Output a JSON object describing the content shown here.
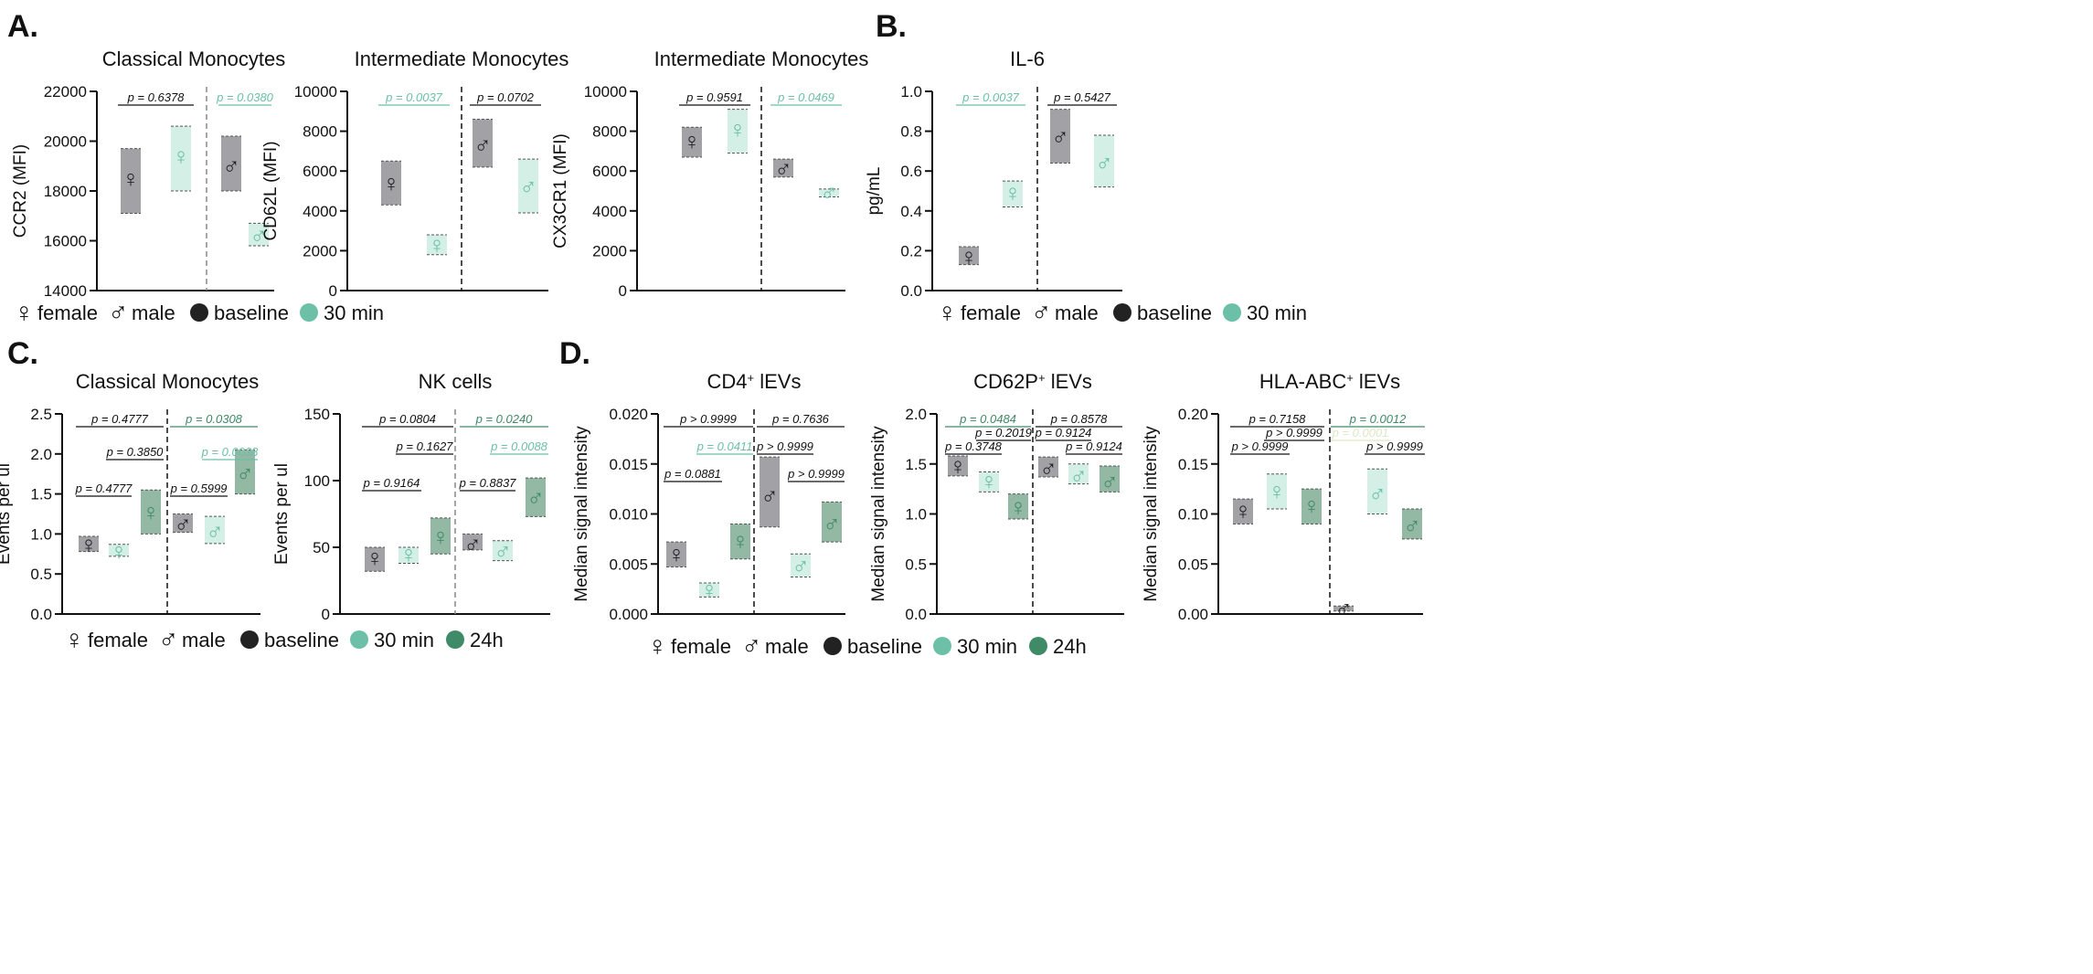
{
  "colors": {
    "baseline_box": "#a2a2a6",
    "baseline_sym": "#222222",
    "min30_box": "#d3efe6",
    "min30_sym": "#6cc0a8",
    "h24_box": "#93b8a3",
    "h24_sym": "#3f8a67",
    "p_black": "#111111",
    "p_teal": "#6cc0a8",
    "p_green": "#3f8a67",
    "p_pale": "#dde8c6"
  },
  "panel_labels": [
    "A.",
    "B.",
    "C.",
    "D."
  ],
  "legends": {
    "female": "female",
    "male": "male",
    "baseline": "baseline",
    "min30": "30 min",
    "h24": "24h",
    "female_symbol": "♀",
    "male_symbol": "♂"
  },
  "chart_data": [
    {
      "type": "box",
      "title": "Classical Monocytes",
      "title_sup": "",
      "title_rest": "",
      "ylabel": "CCR2 (MFI)",
      "ylim": [
        14000,
        22000
      ],
      "ticks": [
        14000,
        16000,
        18000,
        20000,
        22000
      ],
      "tick_labels": [
        "14000",
        "16000",
        "18000",
        "20000",
        "22000"
      ],
      "columns": [
        {
          "sex": "female",
          "time": "baseline",
          "lo": 17100,
          "hi": 19700,
          "mean": 18500
        },
        {
          "sex": "female",
          "time": "30 min",
          "lo": 18000,
          "hi": 20600,
          "mean": 19400
        },
        {
          "sex": "male",
          "time": "baseline",
          "lo": 18000,
          "hi": 20200,
          "mean": 19000
        },
        {
          "sex": "male",
          "time": "30 min",
          "lo": 15800,
          "hi": 16700,
          "mean": 16200
        }
      ],
      "comparisons": [
        {
          "from": 0,
          "to": 1,
          "level": 0,
          "label": "p = 0.6378",
          "color": "black"
        },
        {
          "from": 2,
          "to": 3,
          "level": 0,
          "label": "p = 0.0380",
          "color": "teal"
        }
      ]
    },
    {
      "type": "box",
      "title": "Intermediate Monocytes",
      "title_sup": "",
      "title_rest": "",
      "ylabel": "CD62L (MFI)",
      "ylim": [
        0,
        10000
      ],
      "ticks": [
        0,
        2000,
        4000,
        6000,
        8000,
        10000
      ],
      "tick_labels": [
        "0",
        "2000",
        "4000",
        "6000",
        "8000",
        "10000"
      ],
      "columns": [
        {
          "sex": "female",
          "time": "baseline",
          "lo": 4300,
          "hi": 6500,
          "mean": 5400
        },
        {
          "sex": "female",
          "time": "30 min",
          "lo": 1800,
          "hi": 2800,
          "mean": 2300
        },
        {
          "sex": "male",
          "time": "baseline",
          "lo": 6200,
          "hi": 8600,
          "mean": 7300
        },
        {
          "sex": "male",
          "time": "30 min",
          "lo": 3900,
          "hi": 6600,
          "mean": 5200
        }
      ],
      "comparisons": [
        {
          "from": 0,
          "to": 1,
          "level": 0,
          "label": "p = 0.0037",
          "color": "teal"
        },
        {
          "from": 2,
          "to": 3,
          "level": 0,
          "label": "p = 0.0702",
          "color": "black"
        }
      ]
    },
    {
      "type": "box",
      "title": "Intermediate Monocytes",
      "title_sup": "",
      "title_rest": "",
      "ylabel": "CX3CR1 (MFI)",
      "ylim": [
        0,
        10000
      ],
      "ticks": [
        0,
        2000,
        4000,
        6000,
        8000,
        10000
      ],
      "tick_labels": [
        "0",
        "2000",
        "4000",
        "6000",
        "8000",
        "10000"
      ],
      "columns": [
        {
          "sex": "female",
          "time": "baseline",
          "lo": 6700,
          "hi": 8200,
          "mean": 7500
        },
        {
          "sex": "female",
          "time": "30 min",
          "lo": 6900,
          "hi": 9100,
          "mean": 8100
        },
        {
          "sex": "male",
          "time": "baseline",
          "lo": 5700,
          "hi": 6600,
          "mean": 6100
        },
        {
          "sex": "male",
          "time": "30 min",
          "lo": 4700,
          "hi": 5100,
          "mean": 4900
        }
      ],
      "comparisons": [
        {
          "from": 0,
          "to": 1,
          "level": 0,
          "label": "p = 0.9591",
          "color": "black"
        },
        {
          "from": 2,
          "to": 3,
          "level": 0,
          "label": "p = 0.0469",
          "color": "teal"
        }
      ]
    },
    {
      "type": "box",
      "title": "IL-6",
      "title_sup": "",
      "title_rest": "",
      "ylabel": "pg/mL",
      "ylim": [
        0,
        1.0
      ],
      "ticks": [
        0,
        0.2,
        0.4,
        0.6,
        0.8,
        1.0
      ],
      "tick_labels": [
        "0.0",
        "0.2",
        "0.4",
        "0.6",
        "0.8",
        "1.0"
      ],
      "columns": [
        {
          "sex": "female",
          "time": "baseline",
          "lo": 0.13,
          "hi": 0.22,
          "mean": 0.17
        },
        {
          "sex": "female",
          "time": "30 min",
          "lo": 0.42,
          "hi": 0.55,
          "mean": 0.49
        },
        {
          "sex": "male",
          "time": "baseline",
          "lo": 0.64,
          "hi": 0.91,
          "mean": 0.77
        },
        {
          "sex": "male",
          "time": "30 min",
          "lo": 0.52,
          "hi": 0.78,
          "mean": 0.64
        }
      ],
      "comparisons": [
        {
          "from": 0,
          "to": 1,
          "level": 0,
          "label": "p = 0.0037",
          "color": "teal"
        },
        {
          "from": 2,
          "to": 3,
          "level": 0,
          "label": "p = 0.5427",
          "color": "black"
        }
      ]
    },
    {
      "type": "box",
      "title": "Classical Monocytes",
      "title_sup": "",
      "title_rest": "",
      "ylabel": "Events per ul",
      "ylim": [
        0,
        2.5
      ],
      "ticks": [
        0,
        0.5,
        1,
        1.5,
        2,
        2.5
      ],
      "tick_labels": [
        "0.0",
        "0.5",
        "1.0",
        "1.5",
        "2.0",
        "2.5"
      ],
      "columns": [
        {
          "sex": "female",
          "time": "baseline",
          "lo": 0.78,
          "hi": 0.97,
          "mean": 0.87
        },
        {
          "sex": "female",
          "time": "30 min",
          "lo": 0.72,
          "hi": 0.87,
          "mean": 0.78
        },
        {
          "sex": "female",
          "time": "24h",
          "lo": 1.0,
          "hi": 1.55,
          "mean": 1.27
        },
        {
          "sex": "male",
          "time": "baseline",
          "lo": 1.02,
          "hi": 1.25,
          "mean": 1.12
        },
        {
          "sex": "male",
          "time": "30 min",
          "lo": 0.88,
          "hi": 1.22,
          "mean": 1.03
        },
        {
          "sex": "male",
          "time": "24h",
          "lo": 1.5,
          "hi": 2.05,
          "mean": 1.75
        }
      ],
      "comparisons": [
        {
          "from": 0,
          "to": 2,
          "level": 0,
          "label": "p = 0.4777",
          "color": "black"
        },
        {
          "from": 1,
          "to": 2,
          "level": 1,
          "label": "p = 0.3850",
          "color": "black"
        },
        {
          "from": 0,
          "to": 1,
          "level": 2,
          "label": "p = 0.4777",
          "color": "black"
        },
        {
          "from": 3,
          "to": 5,
          "level": 0,
          "label": "p = 0.0308",
          "color": "green"
        },
        {
          "from": 4,
          "to": 5,
          "level": 1,
          "label": "p = 0.0038",
          "color": "teal"
        },
        {
          "from": 3,
          "to": 4,
          "level": 2,
          "label": "p = 0.5999",
          "color": "black"
        }
      ]
    },
    {
      "type": "box",
      "title": "NK cells",
      "title_sup": "",
      "title_rest": "",
      "ylabel": "Events per ul",
      "ylim": [
        0,
        150
      ],
      "ticks": [
        0,
        50,
        100,
        150
      ],
      "tick_labels": [
        "0",
        "50",
        "100",
        "150"
      ],
      "columns": [
        {
          "sex": "female",
          "time": "baseline",
          "lo": 32,
          "hi": 50,
          "mean": 42
        },
        {
          "sex": "female",
          "time": "30 min",
          "lo": 38,
          "hi": 50,
          "mean": 45
        },
        {
          "sex": "female",
          "time": "24h",
          "lo": 45,
          "hi": 72,
          "mean": 58
        },
        {
          "sex": "male",
          "time": "baseline",
          "lo": 48,
          "hi": 60,
          "mean": 52
        },
        {
          "sex": "male",
          "time": "30 min",
          "lo": 40,
          "hi": 55,
          "mean": 47
        },
        {
          "sex": "male",
          "time": "24h",
          "lo": 73,
          "hi": 102,
          "mean": 87
        }
      ],
      "comparisons": [
        {
          "from": 0,
          "to": 2,
          "level": 0,
          "label": "p = 0.0804",
          "color": "black"
        },
        {
          "from": 1,
          "to": 2,
          "level": 1,
          "label": "p = 0.1627",
          "color": "black"
        },
        {
          "from": 0,
          "to": 1,
          "level": 2,
          "label": "p = 0.9164",
          "color": "black"
        },
        {
          "from": 3,
          "to": 5,
          "level": 0,
          "label": "p = 0.0240",
          "color": "green"
        },
        {
          "from": 4,
          "to": 5,
          "level": 1,
          "label": "p = 0.0088",
          "color": "teal"
        },
        {
          "from": 3,
          "to": 4,
          "level": 2,
          "label": "p = 0.8837",
          "color": "black"
        }
      ]
    },
    {
      "type": "box",
      "title": "CD4",
      "title_sup": "+",
      "title_rest": " lEVs",
      "ylabel": "Median signal intensity",
      "ylim": [
        0,
        0.02
      ],
      "ticks": [
        0,
        0.005,
        0.01,
        0.015,
        0.02
      ],
      "tick_labels": [
        "0.000",
        "0.005",
        "0.010",
        "0.015",
        "0.020"
      ],
      "columns": [
        {
          "sex": "female",
          "time": "baseline",
          "lo": 0.0047,
          "hi": 0.0072,
          "mean": 0.006
        },
        {
          "sex": "female",
          "time": "30 min",
          "lo": 0.0017,
          "hi": 0.0031,
          "mean": 0.0024
        },
        {
          "sex": "female",
          "time": "24h",
          "lo": 0.0055,
          "hi": 0.009,
          "mean": 0.0073
        },
        {
          "sex": "male",
          "time": "baseline",
          "lo": 0.0087,
          "hi": 0.0157,
          "mean": 0.0118
        },
        {
          "sex": "male",
          "time": "30 min",
          "lo": 0.0037,
          "hi": 0.006,
          "mean": 0.0048
        },
        {
          "sex": "male",
          "time": "24h",
          "lo": 0.0072,
          "hi": 0.0112,
          "mean": 0.009
        }
      ],
      "comparisons": [
        {
          "from": 0,
          "to": 2,
          "level": 0,
          "label": "p > 0.9999",
          "color": "black"
        },
        {
          "from": 1,
          "to": 2,
          "level": 1,
          "label": "p = 0.0411",
          "color": "teal"
        },
        {
          "from": 0,
          "to": 1,
          "level": 2,
          "label": "p = 0.0881",
          "color": "black"
        },
        {
          "from": 3,
          "to": 5,
          "level": 0,
          "label": "p = 0.7636",
          "color": "black"
        },
        {
          "from": 3,
          "to": 4,
          "level": 1,
          "label": "p > 0.9999",
          "color": "black"
        },
        {
          "from": 4,
          "to": 5,
          "level": 2,
          "label": "p > 0.9999",
          "color": "black"
        }
      ]
    },
    {
      "type": "box",
      "title": "CD62P",
      "title_sup": "+",
      "title_rest": " lEVs",
      "ylabel": "Median signal intensity",
      "ylim": [
        0,
        2.0
      ],
      "ticks": [
        0,
        0.5,
        1,
        1.5,
        2
      ],
      "tick_labels": [
        "0.0",
        "0.5",
        "1.0",
        "1.5",
        "2.0"
      ],
      "columns": [
        {
          "sex": "female",
          "time": "baseline",
          "lo": 1.38,
          "hi": 1.58,
          "mean": 1.48
        },
        {
          "sex": "female",
          "time": "30 min",
          "lo": 1.22,
          "hi": 1.42,
          "mean": 1.33
        },
        {
          "sex": "female",
          "time": "24h",
          "lo": 0.95,
          "hi": 1.2,
          "mean": 1.07
        },
        {
          "sex": "male",
          "time": "baseline",
          "lo": 1.37,
          "hi": 1.57,
          "mean": 1.45
        },
        {
          "sex": "male",
          "time": "30 min",
          "lo": 1.3,
          "hi": 1.5,
          "mean": 1.38
        },
        {
          "sex": "male",
          "time": "24h",
          "lo": 1.22,
          "hi": 1.48,
          "mean": 1.32
        }
      ],
      "comparisons": [
        {
          "from": 0,
          "to": 2,
          "level": 0,
          "label": "p = 0.0484",
          "color": "green"
        },
        {
          "from": 1,
          "to": 2,
          "level": 1,
          "label": "p = 0.2019",
          "color": "black"
        },
        {
          "from": 0,
          "to": 1,
          "level": 2,
          "label": "p = 0.3748",
          "color": "black"
        },
        {
          "from": 3,
          "to": 5,
          "level": 0,
          "label": "p = 0.8578",
          "color": "black"
        },
        {
          "from": 3,
          "to": 4,
          "level": 1,
          "label": "p = 0.9124",
          "color": "black"
        },
        {
          "from": 4,
          "to": 5,
          "level": 2,
          "label": "p = 0.9124",
          "color": "black"
        }
      ]
    },
    {
      "type": "box",
      "title": "HLA-ABC",
      "title_sup": "+",
      "title_rest": " lEVs",
      "ylabel": "Median signal intensity",
      "ylim": [
        0,
        0.2
      ],
      "ticks": [
        0,
        0.05,
        0.1,
        0.15,
        0.2
      ],
      "tick_labels": [
        "0.00",
        "0.05",
        "0.10",
        "0.15",
        "0.20"
      ],
      "columns": [
        {
          "sex": "female",
          "time": "baseline",
          "lo": 0.09,
          "hi": 0.115,
          "mean": 0.103
        },
        {
          "sex": "female",
          "time": "30 min",
          "lo": 0.105,
          "hi": 0.14,
          "mean": 0.123
        },
        {
          "sex": "female",
          "time": "24h",
          "lo": 0.09,
          "hi": 0.125,
          "mean": 0.108
        },
        {
          "sex": "male",
          "time": "baseline",
          "lo": 0.003,
          "hi": 0.008,
          "mean": 0.005
        },
        {
          "sex": "male",
          "time": "30 min",
          "lo": 0.1,
          "hi": 0.145,
          "mean": 0.12
        },
        {
          "sex": "male",
          "time": "24h",
          "lo": 0.075,
          "hi": 0.105,
          "mean": 0.088
        }
      ],
      "comparisons": [
        {
          "from": 0,
          "to": 2,
          "level": 0,
          "label": "p = 0.7158",
          "color": "black"
        },
        {
          "from": 1,
          "to": 2,
          "level": 1,
          "label": "p > 0.9999",
          "color": "black"
        },
        {
          "from": 0,
          "to": 1,
          "level": 2,
          "label": "p > 0.9999",
          "color": "black"
        },
        {
          "from": 3,
          "to": 5,
          "level": 0,
          "label": "p = 0.0012",
          "color": "green"
        },
        {
          "from": 3,
          "to": 4,
          "level": 1,
          "label": "p = 0.0001",
          "color": "pale"
        },
        {
          "from": 4,
          "to": 5,
          "level": 2,
          "label": "p > 0.9999",
          "color": "black"
        }
      ]
    }
  ]
}
